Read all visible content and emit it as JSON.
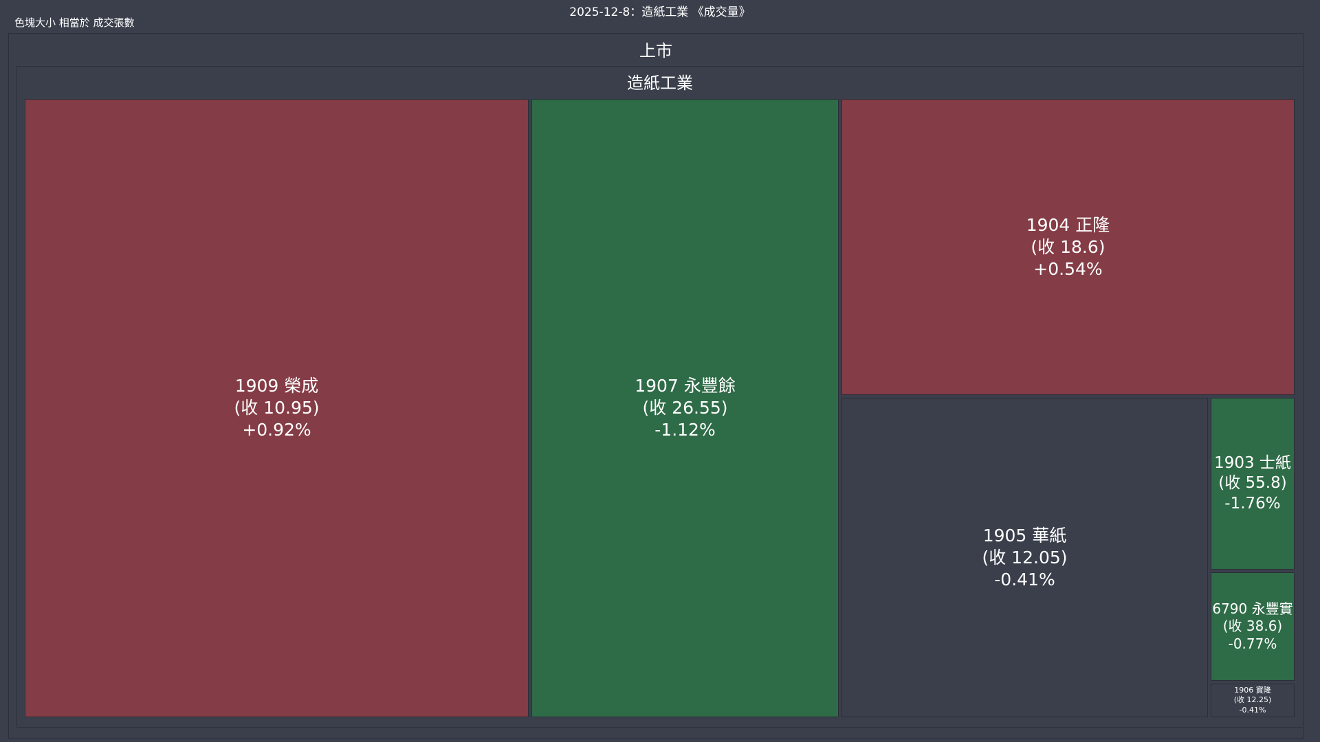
{
  "header": {
    "title": "2025-12-8：造紙工業 《成交量》",
    "note": "色塊大小 相當於 成交張數"
  },
  "root_label": "上市",
  "sector_label": "造紙工業",
  "colors": {
    "up": "#843c46",
    "down": "#2e6b47",
    "flat": "#3a3f4b"
  },
  "chart_data": {
    "type": "treemap",
    "title": "2025-12-8：造紙工業 《成交量》",
    "path": [
      "上市",
      "造紙工業"
    ],
    "items": [
      {
        "code": "1909",
        "name": "榮成",
        "label": "1909 榮成",
        "close_text": "(收 10.95)",
        "change_text": "+0.92%",
        "close": 10.95,
        "change_pct": 0.92
      },
      {
        "code": "1907",
        "name": "永豐餘",
        "label": "1907 永豐餘",
        "close_text": "(收 26.55)",
        "change_text": "-1.12%",
        "close": 26.55,
        "change_pct": -1.12
      },
      {
        "code": "1904",
        "name": "正隆",
        "label": "1904 正隆",
        "close_text": "(收 18.6)",
        "change_text": "+0.54%",
        "close": 18.6,
        "change_pct": 0.54
      },
      {
        "code": "1905",
        "name": "華紙",
        "label": "1905 華紙",
        "close_text": "(收 12.05)",
        "change_text": "-0.41%",
        "close": 12.05,
        "change_pct": -0.41
      },
      {
        "code": "1903",
        "name": "士紙",
        "label": "1903 士紙",
        "close_text": "(收 55.8)",
        "change_text": "-1.76%",
        "close": 55.8,
        "change_pct": -1.76
      },
      {
        "code": "6790",
        "name": "永豐實",
        "label": "6790 永豐實",
        "close_text": "(收 38.6)",
        "change_text": "-0.77%",
        "close": 38.6,
        "change_pct": -0.77
      },
      {
        "code": "1906",
        "name": "寶隆",
        "label": "1906 寶隆",
        "close_text": "(收 12.25)",
        "change_text": "-0.41%",
        "close": 12.25,
        "change_pct": -0.41
      }
    ]
  }
}
